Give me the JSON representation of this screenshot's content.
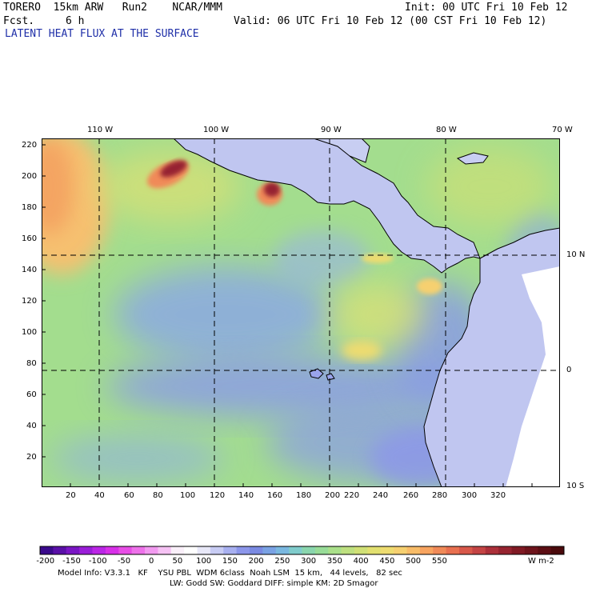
{
  "header": {
    "model": "TORERO  15km ARW   Run2    NCAR/MMM",
    "init": "Init: 00 UTC Fri 10 Feb 12",
    "fcst_label": "Fcst.",
    "fcst_hours": "6 h",
    "valid": "Valid: 06 UTC Fri 10 Feb 12 (00 CST Fri 10 Feb 12)",
    "field_title": "LATENT HEAT FLUX AT THE SURFACE"
  },
  "map": {
    "lon_labels": [
      "110 W",
      "100 W",
      "90 W",
      "80 W",
      "70 W"
    ],
    "lat_labels": [
      "10 N",
      "0",
      "10 S"
    ],
    "y_ticks": [
      "220",
      "200",
      "180",
      "160",
      "140",
      "120",
      "100",
      "80",
      "60",
      "40",
      "20"
    ],
    "x_ticks": [
      "20",
      "40",
      "60",
      "80",
      "100",
      "120",
      "140",
      "160",
      "180",
      "200",
      "220",
      "240",
      "260",
      "280",
      "300",
      "320"
    ]
  },
  "colorbar": {
    "labels": [
      "-200",
      "-150",
      "-100",
      "-50",
      "0",
      "50",
      "100",
      "150",
      "200",
      "250",
      "300",
      "350",
      "400",
      "450",
      "500",
      "550"
    ],
    "units": "W m-2",
    "colors": [
      "#3a0a8c",
      "#5a10a8",
      "#7a16c4",
      "#9a1ed8",
      "#bb26e6",
      "#d830e8",
      "#e84ee6",
      "#ee72ea",
      "#f29af0",
      "#f6c2f4",
      "#faf0fa",
      "#ffffff",
      "#e8e8f8",
      "#c8ccf4",
      "#a8b0f0",
      "#8c96ea",
      "#7a8ae2",
      "#7aa2e4",
      "#7ab8e0",
      "#80cccc",
      "#8ad6ae",
      "#98dc98",
      "#aae08a",
      "#bee080",
      "#d0e076",
      "#e2e070",
      "#eedc70",
      "#f6d070",
      "#f8bc68",
      "#f8a460",
      "#f08a58",
      "#e87050",
      "#d8584a",
      "#c44444",
      "#ac303a",
      "#962430",
      "#801a24",
      "#6e141c",
      "#5c0e14",
      "#4a0a0c"
    ]
  },
  "footer": {
    "line1": "Model Info: V3.3.1   KF    YSU PBL  WDM 6class  Noah LSM  15 km,   44 levels,   82 sec",
    "line2": "LW: Godd SW: Goddard DIFF: simple KM: 2D Smagor"
  }
}
